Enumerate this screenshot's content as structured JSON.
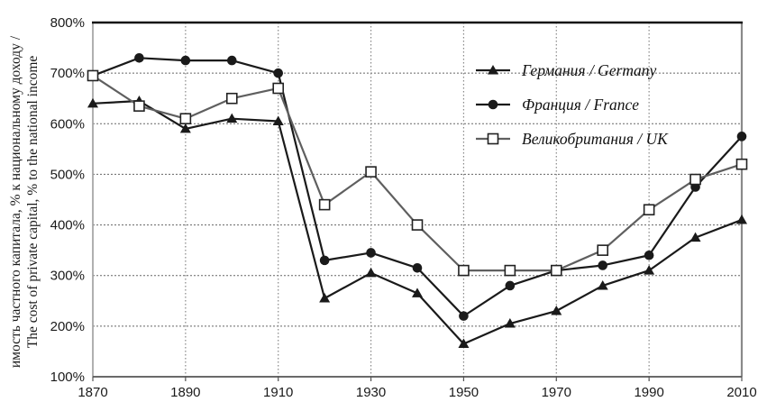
{
  "chart_data": {
    "type": "line",
    "title": "",
    "x": [
      1870,
      1880,
      1890,
      1900,
      1910,
      1920,
      1930,
      1940,
      1950,
      1960,
      1970,
      1980,
      1990,
      2000,
      2010
    ],
    "series": [
      {
        "id": "germany",
        "name": "Германия / Germany",
        "marker": "triangle",
        "color": "#1a1a1a",
        "values": [
          640,
          645,
          590,
          610,
          605,
          255,
          305,
          265,
          165,
          205,
          230,
          280,
          310,
          375,
          410
        ]
      },
      {
        "id": "france",
        "name": "Франция / France",
        "marker": "circle",
        "color": "#1a1a1a",
        "values": [
          695,
          730,
          725,
          725,
          700,
          330,
          345,
          315,
          220,
          280,
          310,
          320,
          340,
          475,
          575
        ]
      },
      {
        "id": "uk",
        "name": "Великобритания / UK",
        "marker": "square",
        "color": "#5f5f5f",
        "marker_fill": "#ffffff",
        "marker_stroke": "#222222",
        "values": [
          695,
          635,
          610,
          650,
          670,
          440,
          505,
          400,
          310,
          310,
          310,
          350,
          430,
          490,
          520
        ]
      }
    ],
    "ylabel_ru": "имость частного капитала, % к национальному доходу /",
    "ylabel_en": "The cost of private capital, % to the national income",
    "xlim": [
      1870,
      2010
    ],
    "ylim": [
      100,
      800
    ],
    "yticks": [
      100,
      200,
      300,
      400,
      500,
      600,
      700,
      800
    ],
    "ytick_suffix": "%",
    "xticks": [
      1870,
      1890,
      1910,
      1930,
      1950,
      1970,
      1990,
      2010
    ],
    "x_gridlines": [
      1890,
      1910,
      1930,
      1950,
      1970,
      1990
    ],
    "y_gridlines": [
      200,
      300,
      400,
      500,
      600,
      700
    ],
    "grid": true,
    "legend_position": "upper-right-inside"
  }
}
